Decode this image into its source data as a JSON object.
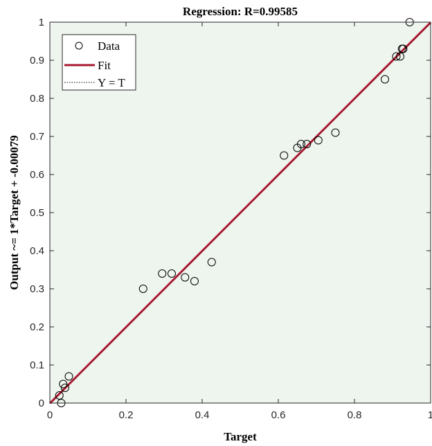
{
  "chart_data": {
    "type": "scatter",
    "title": "Regression: R=0.99585",
    "xlabel": "Target",
    "ylabel": "Output ~= 1*Target + -0.00079",
    "xlim": [
      0,
      1
    ],
    "ylim": [
      0,
      1
    ],
    "xticks": [
      "0",
      "0.2",
      "0.4",
      "0.6",
      "0.8",
      "1"
    ],
    "yticks": [
      "0",
      "0.1",
      "0.2",
      "0.3",
      "0.4",
      "0.5",
      "0.6",
      "0.7",
      "0.8",
      "0.9",
      "1"
    ],
    "grid": false,
    "legend_position": "top-left",
    "series": [
      {
        "name": "Data",
        "kind": "markers",
        "marker": "circle",
        "color": "#000000",
        "points": [
          [
            0.025,
            0.02
          ],
          [
            0.03,
            0.0
          ],
          [
            0.035,
            0.05
          ],
          [
            0.04,
            0.04
          ],
          [
            0.05,
            0.07
          ],
          [
            0.245,
            0.3
          ],
          [
            0.295,
            0.34
          ],
          [
            0.32,
            0.34
          ],
          [
            0.355,
            0.33
          ],
          [
            0.38,
            0.32
          ],
          [
            0.425,
            0.37
          ],
          [
            0.615,
            0.65
          ],
          [
            0.65,
            0.67
          ],
          [
            0.66,
            0.68
          ],
          [
            0.675,
            0.68
          ],
          [
            0.705,
            0.69
          ],
          [
            0.75,
            0.71
          ],
          [
            0.88,
            0.85
          ],
          [
            0.91,
            0.91
          ],
          [
            0.92,
            0.91
          ],
          [
            0.925,
            0.93
          ],
          [
            0.928,
            0.93
          ],
          [
            0.945,
            1.0
          ]
        ]
      },
      {
        "name": "Fit",
        "kind": "line",
        "color": "#a6192e",
        "slope": 1,
        "intercept": -0.00079
      },
      {
        "name": "Y = T",
        "kind": "dotted-line",
        "color": "#000000",
        "slope": 1,
        "intercept": 0
      }
    ],
    "plot_background": "#eef4ee"
  }
}
